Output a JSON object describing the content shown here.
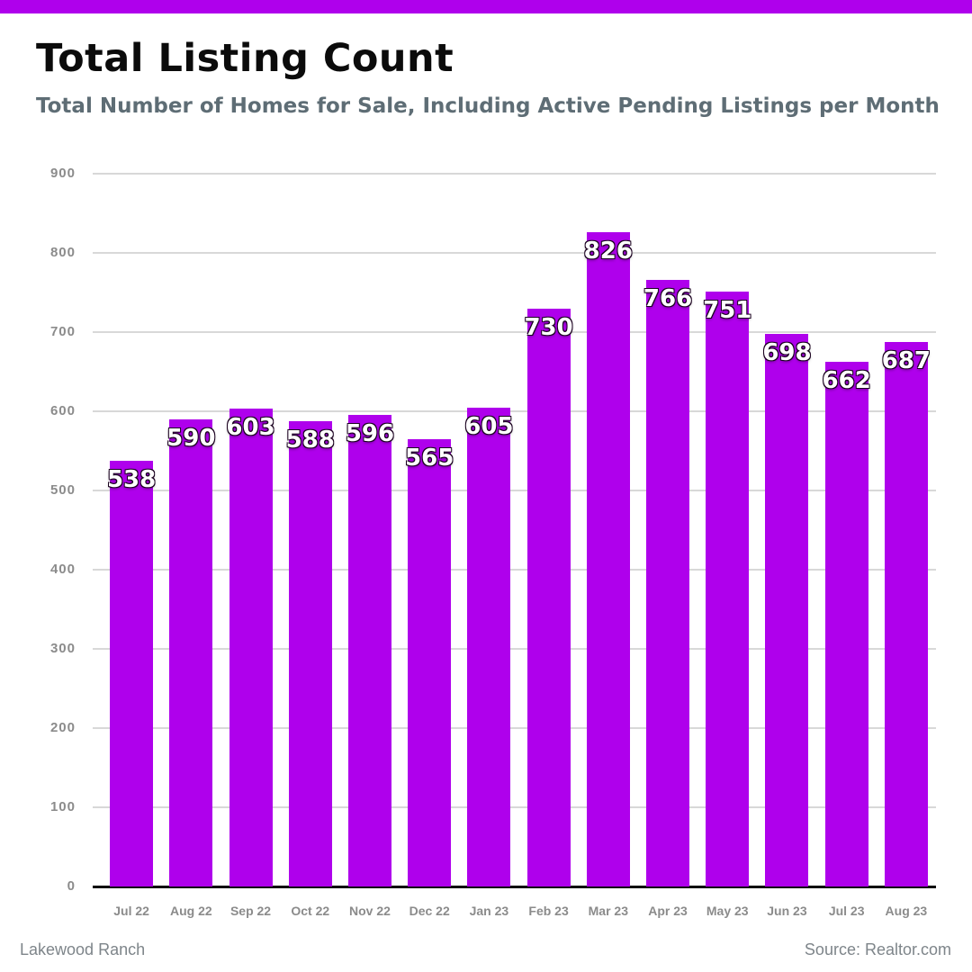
{
  "accent_color": "#AF00EC",
  "header": {
    "title": "Total Listing Count",
    "subtitle": "Total Number of Homes for Sale, Including Active Pending Listings per Month"
  },
  "footer": {
    "left": "Lakewood Ranch",
    "right": "Source: Realtor.com"
  },
  "chart_data": {
    "type": "bar",
    "title": "Total Listing Count",
    "subtitle": "Total Number of Homes for Sale, Including Active Pending Listings per Month",
    "categories": [
      "Jul 22",
      "Aug 22",
      "Sep 22",
      "Oct 22",
      "Nov 22",
      "Dec 22",
      "Jan 23",
      "Feb 23",
      "Mar 23",
      "Apr 23",
      "May 23",
      "Jun 23",
      "Jul 23",
      "Aug 23"
    ],
    "values": [
      538,
      590,
      603,
      588,
      596,
      565,
      605,
      730,
      826,
      766,
      751,
      698,
      662,
      687
    ],
    "xlabel": "",
    "ylabel": "",
    "ylim": [
      0,
      900
    ],
    "ytick_step": 100,
    "grid": true,
    "legend": "none",
    "bar_color": "#AF00EC",
    "value_label_color": "#ffffff",
    "gridline_color": "#d8d8d8",
    "axis_label_color": "#8b8b8b"
  }
}
